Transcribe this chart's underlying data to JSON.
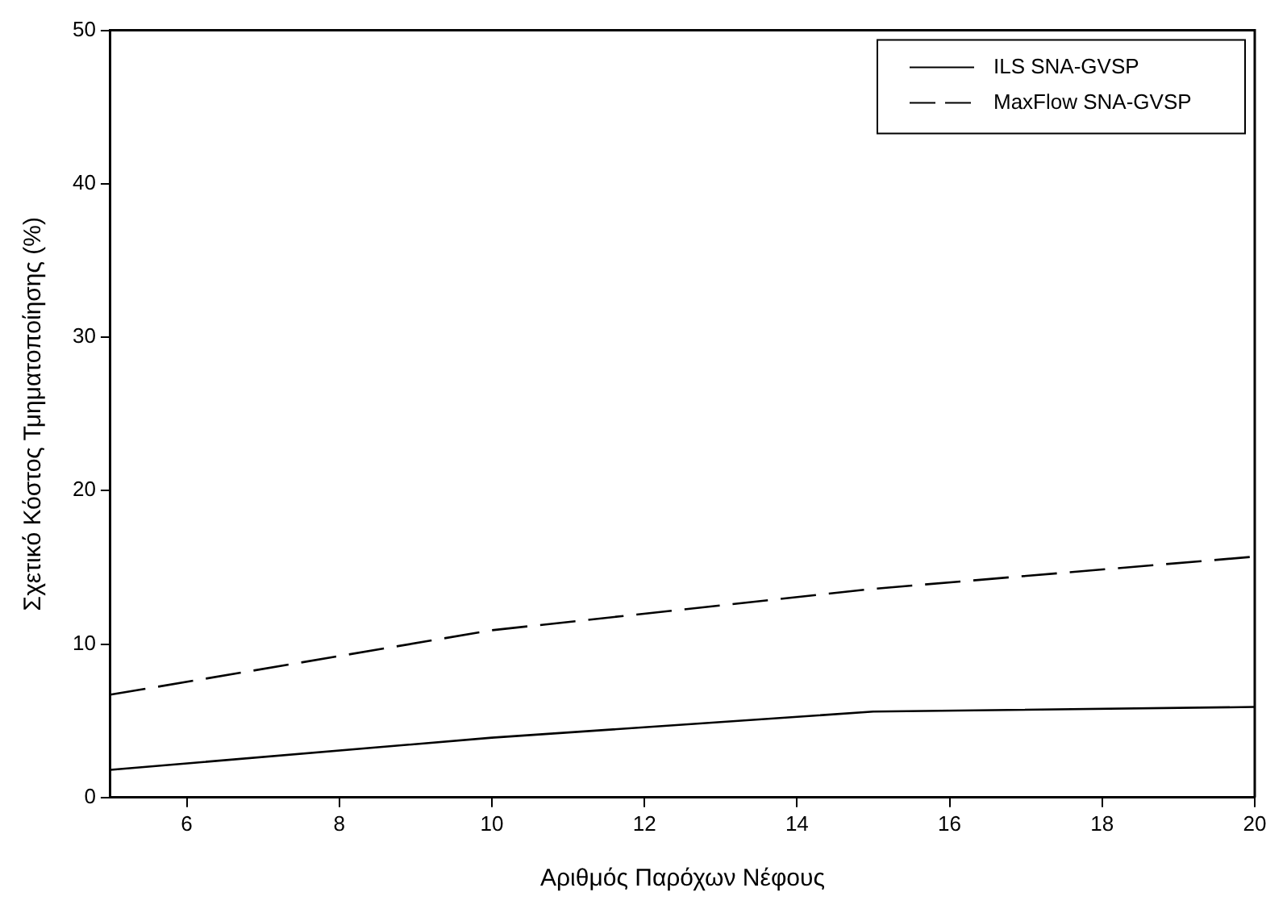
{
  "chart_data": {
    "type": "line",
    "xlabel": "Αριθμός Παρόχων Νέφους",
    "ylabel": "Σχετικό Κόστος Τμηματοποίησης (%)",
    "x": [
      5,
      10,
      15,
      20
    ],
    "series": [
      {
        "name": "ILS SNA-GVSP",
        "color": "#000000",
        "values": [
          1.8,
          3.9,
          5.6,
          5.9
        ],
        "line_style": "solid"
      },
      {
        "name": "MaxFlow SNA-GVSP",
        "color": "#000000",
        "values": [
          6.7,
          10.9,
          13.6,
          15.7
        ],
        "line_style": "dashed"
      }
    ],
    "xlim": [
      5,
      20
    ],
    "xticks": [
      6,
      8,
      10,
      12,
      14,
      16,
      18,
      20
    ],
    "ylim": [
      0,
      50
    ],
    "yticks": [
      0,
      10,
      20,
      30,
      40,
      50
    ],
    "grid": false,
    "legend": "top right",
    "marker": "none"
  }
}
